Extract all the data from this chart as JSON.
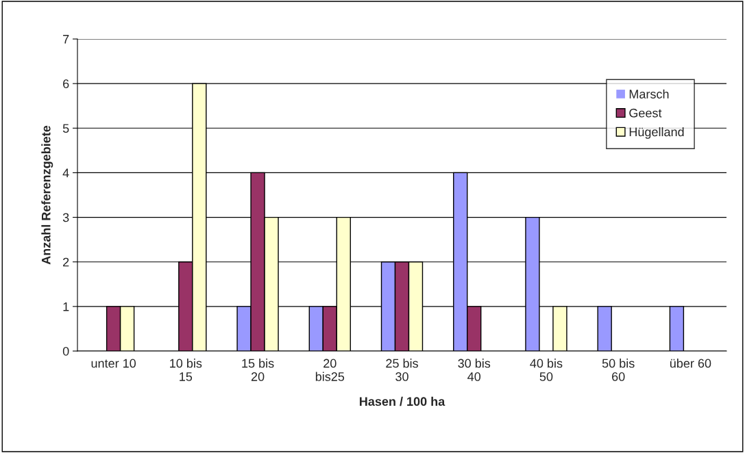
{
  "chart_data": {
    "type": "bar",
    "xlabel": "Hasen / 100 ha",
    "ylabel": "Anzahl Referenzgebiete",
    "categories": [
      "unter 10",
      "10 bis\n15",
      "15 bis\n20",
      "20\nbis25",
      "25 bis\n30",
      "30 bis\n40",
      "40 bis\n50",
      "50 bis\n60",
      "über 60"
    ],
    "series": [
      {
        "name": "Marsch",
        "color": "#9999ff",
        "values": [
          0,
          0,
          1,
          1,
          2,
          4,
          3,
          1,
          1
        ]
      },
      {
        "name": "Geest",
        "color": "#993366",
        "values": [
          1,
          2,
          4,
          1,
          2,
          1,
          0,
          0,
          0
        ]
      },
      {
        "name": "Hügelland",
        "color": "#ffffcc",
        "values": [
          1,
          6,
          3,
          3,
          2,
          0,
          1,
          0,
          0
        ]
      }
    ],
    "ylim": [
      0,
      7
    ],
    "yticks": [
      0,
      1,
      2,
      3,
      4,
      5,
      6,
      7
    ],
    "grid": "y",
    "legend": "top right"
  }
}
